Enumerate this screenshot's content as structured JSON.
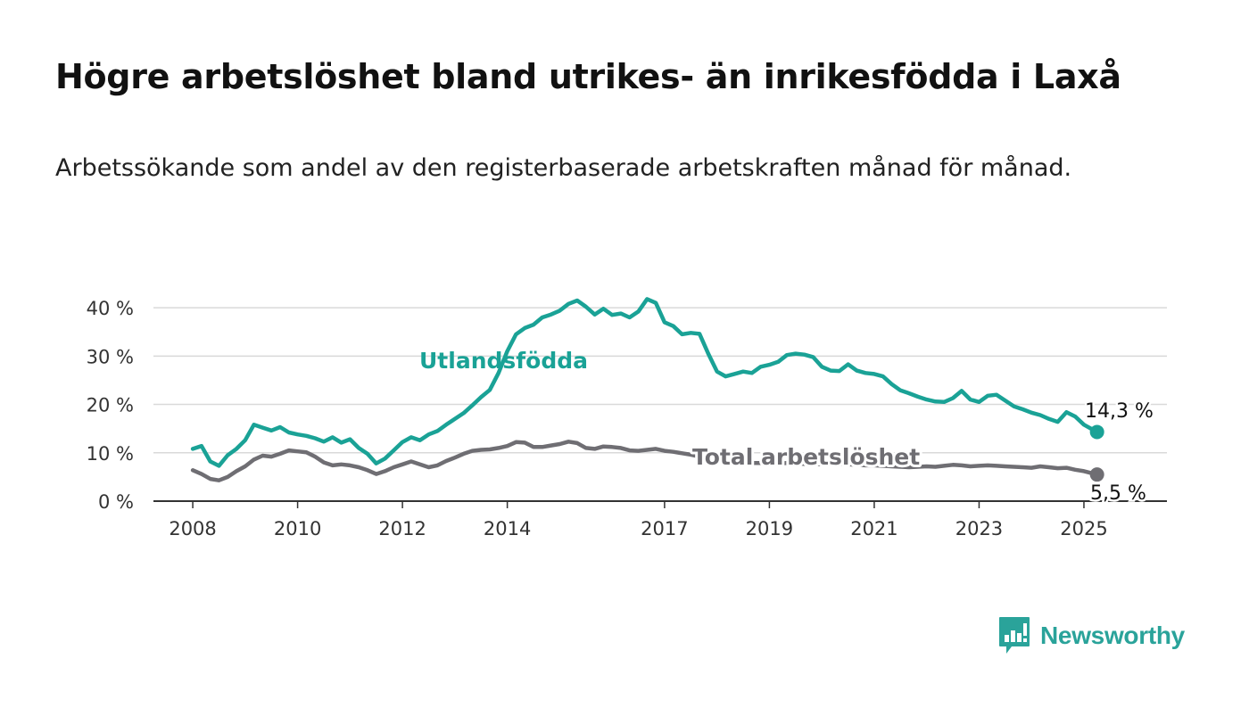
{
  "title": "Högre arbetslöshet bland utrikes- än inrikesfödda i Laxå",
  "subtitle": "Arbetssökande som andel av den registerbaserade arbetskraften månad för månad.",
  "brand": {
    "name": "Newsworthy",
    "color": "#2aa39a"
  },
  "chart_data": {
    "type": "line",
    "title": "Högre arbetslöshet bland utrikes- än inrikesfödda i Laxå",
    "subtitle": "Arbetssökande som andel av den registerbaserade arbetskraften månad för månad.",
    "xlabel": "",
    "ylabel": "",
    "x_ticks": [
      "2008",
      "2010",
      "2012",
      "2014",
      "2017",
      "2019",
      "2021",
      "2023",
      "2025"
    ],
    "y_ticks": [
      "0 %",
      "10 %",
      "20 %",
      "30 %",
      "40 %"
    ],
    "ylim": [
      0,
      45
    ],
    "xlim": [
      "2007-04",
      "2026-08"
    ],
    "grid": true,
    "legend": "inline labels",
    "series": [
      {
        "name": "Utlandsfödda",
        "color": "#1aa296",
        "end_label": "14,3 %",
        "points": [
          [
            "2008-01",
            10.8
          ],
          [
            "2008-03",
            11.4
          ],
          [
            "2008-05",
            8.2
          ],
          [
            "2008-07",
            7.3
          ],
          [
            "2008-09",
            9.5
          ],
          [
            "2008-11",
            10.8
          ],
          [
            "2009-01",
            12.6
          ],
          [
            "2009-03",
            15.8
          ],
          [
            "2009-05",
            15.2
          ],
          [
            "2009-07",
            14.6
          ],
          [
            "2009-09",
            15.3
          ],
          [
            "2009-11",
            14.2
          ],
          [
            "2010-01",
            13.8
          ],
          [
            "2010-03",
            13.5
          ],
          [
            "2010-05",
            13.0
          ],
          [
            "2010-07",
            12.3
          ],
          [
            "2010-09",
            13.2
          ],
          [
            "2010-11",
            12.1
          ],
          [
            "2011-01",
            12.8
          ],
          [
            "2011-03",
            11.0
          ],
          [
            "2011-05",
            9.8
          ],
          [
            "2011-07",
            7.8
          ],
          [
            "2011-09",
            8.8
          ],
          [
            "2011-11",
            10.5
          ],
          [
            "2012-01",
            12.2
          ],
          [
            "2012-03",
            13.2
          ],
          [
            "2012-05",
            12.6
          ],
          [
            "2012-07",
            13.8
          ],
          [
            "2012-09",
            14.5
          ],
          [
            "2012-11",
            15.8
          ],
          [
            "2013-01",
            17.0
          ],
          [
            "2013-03",
            18.2
          ],
          [
            "2013-05",
            19.8
          ],
          [
            "2013-07",
            21.5
          ],
          [
            "2013-09",
            23.0
          ],
          [
            "2013-11",
            26.5
          ],
          [
            "2014-01",
            31.0
          ],
          [
            "2014-03",
            34.5
          ],
          [
            "2014-05",
            35.8
          ],
          [
            "2014-07",
            36.5
          ],
          [
            "2014-09",
            38.0
          ],
          [
            "2014-11",
            38.6
          ],
          [
            "2015-01",
            39.4
          ],
          [
            "2015-03",
            40.8
          ],
          [
            "2015-05",
            41.5
          ],
          [
            "2015-07",
            40.2
          ],
          [
            "2015-09",
            38.6
          ],
          [
            "2015-11",
            39.8
          ],
          [
            "2016-01",
            38.5
          ],
          [
            "2016-03",
            38.8
          ],
          [
            "2016-05",
            38.0
          ],
          [
            "2016-07",
            39.2
          ],
          [
            "2016-09",
            41.8
          ],
          [
            "2016-11",
            41.0
          ],
          [
            "2017-01",
            37.0
          ],
          [
            "2017-03",
            36.2
          ],
          [
            "2017-05",
            34.5
          ],
          [
            "2017-07",
            34.8
          ],
          [
            "2017-09",
            34.6
          ],
          [
            "2017-11",
            30.5
          ],
          [
            "2018-01",
            26.8
          ],
          [
            "2018-03",
            25.8
          ],
          [
            "2018-05",
            26.3
          ],
          [
            "2018-07",
            26.8
          ],
          [
            "2018-09",
            26.5
          ],
          [
            "2018-11",
            27.8
          ],
          [
            "2019-01",
            28.2
          ],
          [
            "2019-03",
            28.8
          ],
          [
            "2019-05",
            30.2
          ],
          [
            "2019-07",
            30.5
          ],
          [
            "2019-09",
            30.3
          ],
          [
            "2019-11",
            29.8
          ],
          [
            "2020-01",
            27.8
          ],
          [
            "2020-03",
            27.0
          ],
          [
            "2020-05",
            26.9
          ],
          [
            "2020-07",
            28.3
          ],
          [
            "2020-09",
            27.0
          ],
          [
            "2020-11",
            26.5
          ],
          [
            "2021-01",
            26.3
          ],
          [
            "2021-03",
            25.8
          ],
          [
            "2021-05",
            24.2
          ],
          [
            "2021-07",
            22.9
          ],
          [
            "2021-09",
            22.3
          ],
          [
            "2021-11",
            21.6
          ],
          [
            "2022-01",
            21.0
          ],
          [
            "2022-03",
            20.6
          ],
          [
            "2022-05",
            20.5
          ],
          [
            "2022-07",
            21.3
          ],
          [
            "2022-09",
            22.8
          ],
          [
            "2022-11",
            21.0
          ],
          [
            "2023-01",
            20.5
          ],
          [
            "2023-03",
            21.8
          ],
          [
            "2023-05",
            22.0
          ],
          [
            "2023-07",
            20.8
          ],
          [
            "2023-09",
            19.6
          ],
          [
            "2023-11",
            19.0
          ],
          [
            "2024-01",
            18.3
          ],
          [
            "2024-03",
            17.8
          ],
          [
            "2024-05",
            17.0
          ],
          [
            "2024-07",
            16.4
          ],
          [
            "2024-09",
            18.4
          ],
          [
            "2024-11",
            17.5
          ],
          [
            "2025-01",
            15.8
          ],
          [
            "2025-04",
            14.3
          ]
        ]
      },
      {
        "name": "Total arbetslöshet",
        "color": "#6f6e73",
        "end_label": "5,5 %",
        "points": [
          [
            "2008-01",
            6.4
          ],
          [
            "2008-03",
            5.6
          ],
          [
            "2008-05",
            4.6
          ],
          [
            "2008-07",
            4.3
          ],
          [
            "2008-09",
            5.0
          ],
          [
            "2008-11",
            6.2
          ],
          [
            "2009-01",
            7.2
          ],
          [
            "2009-03",
            8.6
          ],
          [
            "2009-05",
            9.4
          ],
          [
            "2009-07",
            9.2
          ],
          [
            "2009-09",
            9.8
          ],
          [
            "2009-11",
            10.5
          ],
          [
            "2010-01",
            10.3
          ],
          [
            "2010-03",
            10.1
          ],
          [
            "2010-05",
            9.2
          ],
          [
            "2010-07",
            8.0
          ],
          [
            "2010-09",
            7.4
          ],
          [
            "2010-11",
            7.6
          ],
          [
            "2011-01",
            7.4
          ],
          [
            "2011-03",
            7.0
          ],
          [
            "2011-05",
            6.4
          ],
          [
            "2011-07",
            5.6
          ],
          [
            "2011-09",
            6.2
          ],
          [
            "2011-11",
            7.0
          ],
          [
            "2012-01",
            7.6
          ],
          [
            "2012-03",
            8.2
          ],
          [
            "2012-05",
            7.6
          ],
          [
            "2012-07",
            7.0
          ],
          [
            "2012-09",
            7.4
          ],
          [
            "2012-11",
            8.3
          ],
          [
            "2013-01",
            9.0
          ],
          [
            "2013-03",
            9.8
          ],
          [
            "2013-05",
            10.4
          ],
          [
            "2013-07",
            10.6
          ],
          [
            "2013-09",
            10.7
          ],
          [
            "2013-11",
            11.0
          ],
          [
            "2014-01",
            11.4
          ],
          [
            "2014-03",
            12.2
          ],
          [
            "2014-05",
            12.1
          ],
          [
            "2014-07",
            11.2
          ],
          [
            "2014-09",
            11.2
          ],
          [
            "2014-11",
            11.5
          ],
          [
            "2015-01",
            11.8
          ],
          [
            "2015-03",
            12.3
          ],
          [
            "2015-05",
            12.0
          ],
          [
            "2015-07",
            11.0
          ],
          [
            "2015-09",
            10.8
          ],
          [
            "2015-11",
            11.3
          ],
          [
            "2016-01",
            11.2
          ],
          [
            "2016-03",
            11.0
          ],
          [
            "2016-05",
            10.5
          ],
          [
            "2016-07",
            10.4
          ],
          [
            "2016-09",
            10.6
          ],
          [
            "2016-11",
            10.8
          ],
          [
            "2017-01",
            10.4
          ],
          [
            "2017-03",
            10.2
          ],
          [
            "2017-05",
            9.9
          ],
          [
            "2017-07",
            9.6
          ],
          [
            "2017-09",
            9.2
          ],
          [
            "2017-11",
            8.9
          ],
          [
            "2018-01",
            8.6
          ],
          [
            "2018-03",
            8.3
          ],
          [
            "2018-05",
            8.1
          ],
          [
            "2018-07",
            8.0
          ],
          [
            "2018-09",
            7.9
          ],
          [
            "2018-11",
            7.9
          ],
          [
            "2019-01",
            7.8
          ],
          [
            "2019-03",
            7.8
          ],
          [
            "2019-05",
            7.9
          ],
          [
            "2019-07",
            7.8
          ],
          [
            "2019-09",
            7.7
          ],
          [
            "2019-11",
            7.7
          ],
          [
            "2020-01",
            7.6
          ],
          [
            "2020-03",
            7.6
          ],
          [
            "2020-05",
            7.7
          ],
          [
            "2020-07",
            7.6
          ],
          [
            "2020-09",
            7.5
          ],
          [
            "2020-11",
            7.4
          ],
          [
            "2021-01",
            7.4
          ],
          [
            "2021-03",
            7.3
          ],
          [
            "2021-05",
            7.2
          ],
          [
            "2021-07",
            7.1
          ],
          [
            "2021-09",
            7.0
          ],
          [
            "2021-11",
            7.1
          ],
          [
            "2022-01",
            7.2
          ],
          [
            "2022-03",
            7.1
          ],
          [
            "2022-05",
            7.3
          ],
          [
            "2022-07",
            7.5
          ],
          [
            "2022-09",
            7.4
          ],
          [
            "2022-11",
            7.2
          ],
          [
            "2023-01",
            7.3
          ],
          [
            "2023-03",
            7.4
          ],
          [
            "2023-05",
            7.3
          ],
          [
            "2023-07",
            7.2
          ],
          [
            "2023-09",
            7.1
          ],
          [
            "2023-11",
            7.0
          ],
          [
            "2024-01",
            6.9
          ],
          [
            "2024-03",
            7.2
          ],
          [
            "2024-05",
            7.0
          ],
          [
            "2024-07",
            6.8
          ],
          [
            "2024-09",
            6.9
          ],
          [
            "2024-11",
            6.5
          ],
          [
            "2025-01",
            6.2
          ],
          [
            "2025-04",
            5.5
          ]
        ]
      }
    ]
  }
}
